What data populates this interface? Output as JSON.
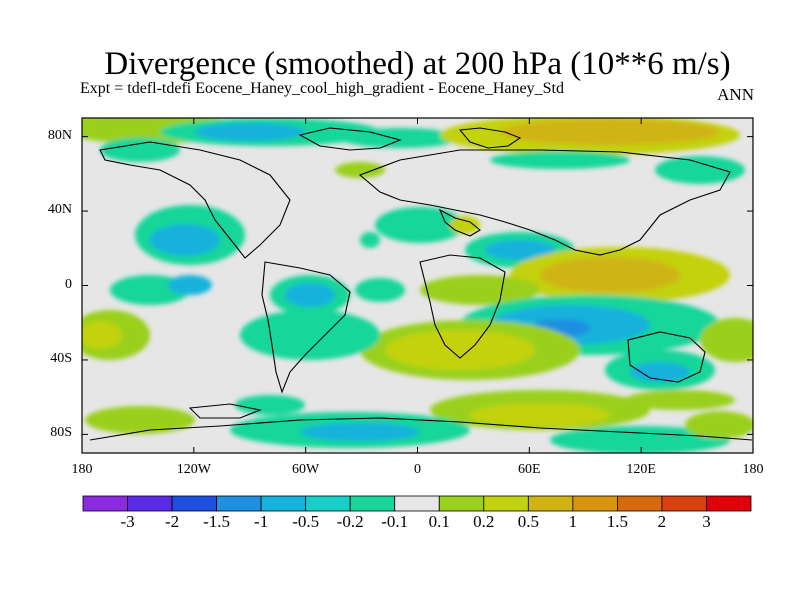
{
  "title": "Divergence (smoothed) at 200 hPa (10**6 m/s)",
  "subtitle": "Expt = tdefl-tdefi  Eocene_Haney_cool_high_gradient - Eocene_Haney_Std",
  "season": "ANN",
  "lat_ticks": [
    {
      "value": 80,
      "label": "80N"
    },
    {
      "value": 40,
      "label": "40N"
    },
    {
      "value": 0,
      "label": "0"
    },
    {
      "value": -40,
      "label": "40S"
    },
    {
      "value": -80,
      "label": "80S"
    }
  ],
  "lon_ticks": [
    {
      "value": -180,
      "label": "180"
    },
    {
      "value": -120,
      "label": "120W"
    },
    {
      "value": -60,
      "label": "60W"
    },
    {
      "value": 0,
      "label": "0"
    },
    {
      "value": 60,
      "label": "60E"
    },
    {
      "value": 120,
      "label": "120E"
    },
    {
      "value": 180,
      "label": "180"
    }
  ],
  "colorbar": {
    "colors": [
      "#8a2be2",
      "#5b2ae6",
      "#1f4fe0",
      "#1f8fe0",
      "#15b2dc",
      "#17cfc7",
      "#18d69a",
      "#e6e6e6",
      "#9ad01e",
      "#c3d20f",
      "#d0b412",
      "#d9950e",
      "#d56a0e",
      "#d84010",
      "#e0000a"
    ],
    "labels": [
      "-3",
      "-2",
      "-1.5",
      "-1",
      "-0.5",
      "-0.2",
      "-0.1",
      "0.1",
      "0.2",
      "0.5",
      "1",
      "1.5",
      "2",
      "3"
    ]
  },
  "map": {
    "lon_range": [
      -180,
      180
    ],
    "lat_range": [
      -90,
      90
    ],
    "background": "#e6e6e6"
  }
}
